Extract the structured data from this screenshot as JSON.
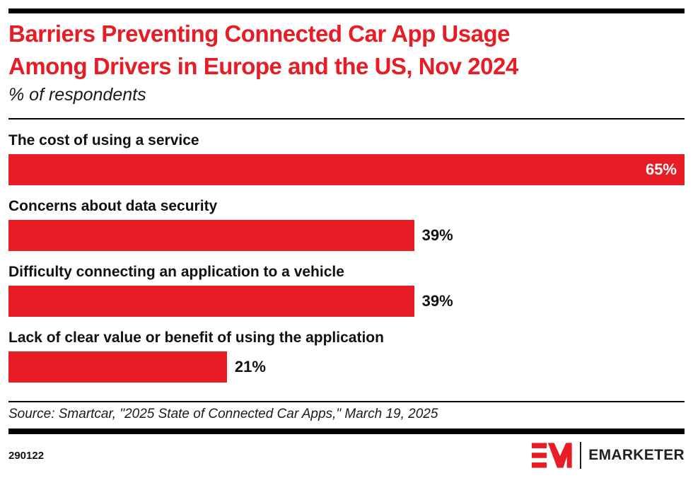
{
  "header": {
    "title_line1": "Barriers Preventing Connected Car App Usage",
    "title_line2": "Among Drivers in Europe and the US, Nov 2024",
    "subtitle": "% of respondents"
  },
  "chart_data": {
    "type": "bar",
    "orientation": "horizontal",
    "title": "Barriers Preventing Connected Car App Usage Among Drivers in Europe and the US, Nov 2024",
    "xlabel": "% of respondents",
    "ylabel": "",
    "unit": "%",
    "xlim": [
      0,
      65
    ],
    "grid": false,
    "legend": false,
    "bar_color": "#E81C24",
    "categories": [
      "The cost of using a service",
      "Concerns about data security",
      "Difficulty connecting an application to a vehicle",
      "Lack of clear value or benefit of using the application"
    ],
    "values": [
      65,
      39,
      39,
      21
    ],
    "rows": [
      {
        "label": "The cost of using a service",
        "value": 65,
        "value_label": "65%"
      },
      {
        "label": "Concerns about data security",
        "value": 39,
        "value_label": "39%"
      },
      {
        "label": "Difficulty connecting an application to a vehicle",
        "value": 39,
        "value_label": "39%"
      },
      {
        "label": "Lack of clear value or benefit of using the application",
        "value": 21,
        "value_label": "21%"
      }
    ]
  },
  "footer": {
    "source": "Source: Smartcar, \"2025 State of Connected Car Apps,\" March 19, 2025",
    "chart_id": "290122",
    "brand_name": "EMARKETER"
  },
  "colors": {
    "accent_red": "#E81C24",
    "bar_black": "#000000",
    "text_black": "#111111"
  }
}
